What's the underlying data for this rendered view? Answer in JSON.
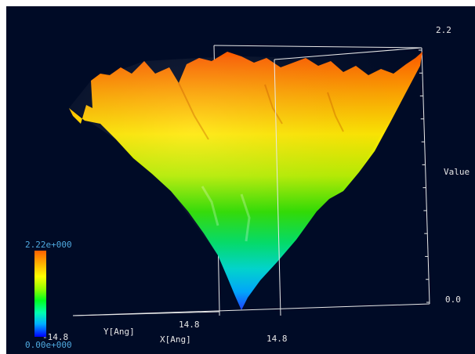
{
  "chart_data": {
    "type": "surface3d",
    "value_axis": {
      "label": "Value",
      "min": 0.0,
      "max": 2.2,
      "min_label": "0.0",
      "max_label": "2.2"
    },
    "x_axis": {
      "label": "X[Ang]",
      "min_label": "-14.8",
      "max_label": "14.8"
    },
    "y_axis": {
      "label": "Y[Ang]",
      "min_label": "-14.8",
      "max_label": "14.8"
    },
    "colorbar": {
      "min": 0.0,
      "max": 2.22,
      "min_label": "0.00e+000",
      "max_label": "2.22e+000",
      "colors": [
        "#0000ff",
        "#00b0ff",
        "#00ffb0",
        "#00ff00",
        "#b0ff00",
        "#ffff00",
        "#ffb000",
        "#ff6000"
      ]
    },
    "surface": {
      "shape": "funnel",
      "well_min": 0.0,
      "rim_max": 2.22
    }
  }
}
